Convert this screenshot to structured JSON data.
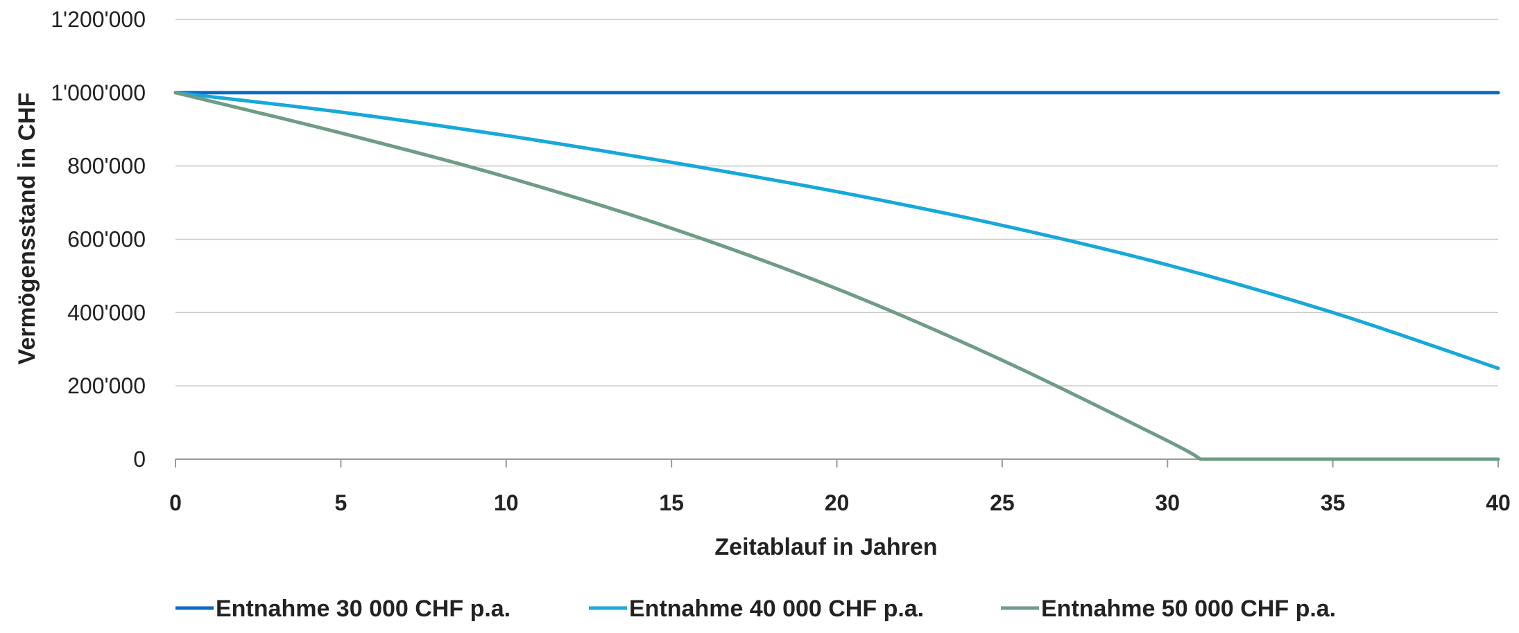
{
  "chart_data": {
    "type": "line",
    "title": "",
    "xlabel": "Zeitablauf in Jahren",
    "ylabel": "Vermögensstand in CHF",
    "xlim": [
      0,
      40
    ],
    "ylim": [
      0,
      1200000
    ],
    "x_ticks": [
      0,
      5,
      10,
      15,
      20,
      25,
      30,
      35,
      40
    ],
    "x_tick_labels": [
      "0",
      "5",
      "10",
      "15",
      "20",
      "25",
      "30",
      "35",
      "40"
    ],
    "y_ticks": [
      0,
      200000,
      400000,
      600000,
      800000,
      1000000,
      1200000
    ],
    "y_tick_labels": [
      "0",
      "200'000",
      "400'000",
      "600'000",
      "800'000",
      "1'000'000",
      "1'200'000"
    ],
    "grid": true,
    "legend_position": "bottom",
    "series": [
      {
        "name": "Entnahme 30 000 CHF p.a.",
        "color": "#0A6BC4",
        "x": [
          0,
          40
        ],
        "y": [
          1000000,
          1000000
        ]
      },
      {
        "name": "Entnahme 40 000 CHF p.a.",
        "color": "#17A8DA",
        "x": [
          0,
          5,
          10,
          15,
          20,
          25,
          30,
          35,
          40
        ],
        "y": [
          1000000,
          947000,
          883000,
          810000,
          730000,
          638000,
          530000,
          400000,
          248000
        ]
      },
      {
        "name": "Entnahme 50 000 CHF p.a.",
        "color": "#6E9C86",
        "x": [
          0,
          5,
          10,
          15,
          20,
          25,
          30,
          31,
          35,
          40
        ],
        "y": [
          1000000,
          890000,
          770000,
          630000,
          465000,
          270000,
          50000,
          0,
          0,
          0
        ]
      }
    ]
  }
}
